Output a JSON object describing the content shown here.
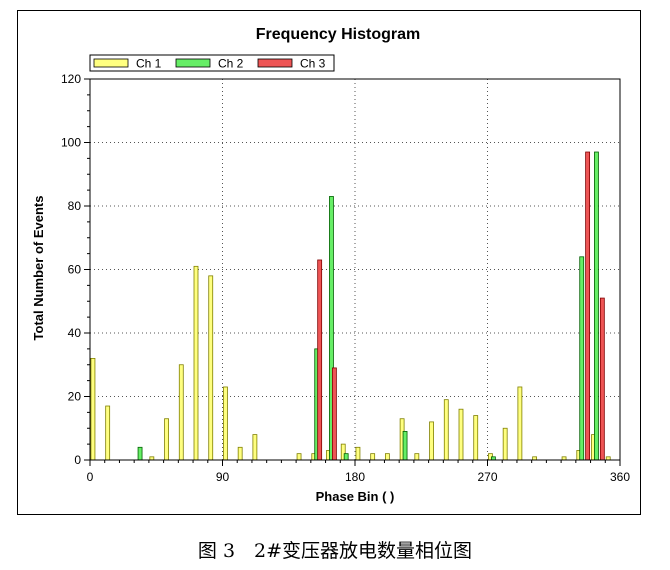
{
  "caption": "图 3　2#变压器放电数量相位图",
  "colors": {
    "ch1": "#ffff80",
    "ch2": "#66ee66",
    "ch3": "#ee5555",
    "ch1_border": "#808000",
    "ch2_border": "#006000",
    "ch3_border": "#800000"
  },
  "chart_data": {
    "type": "bar",
    "title": "Frequency Histogram",
    "xlabel": "Phase  Bin  (  )",
    "ylabel": "Total Number of Events",
    "xlim": [
      0,
      360
    ],
    "ylim": [
      0,
      120
    ],
    "xticks": [
      0,
      90,
      180,
      270,
      360
    ],
    "yticks": [
      0,
      20,
      40,
      60,
      80,
      100,
      120
    ],
    "grid": true,
    "legend_position": "top-left",
    "series": [
      {
        "name": "Ch 1",
        "points": [
          [
            2,
            32
          ],
          [
            12,
            17
          ],
          [
            42,
            1
          ],
          [
            52,
            13
          ],
          [
            62,
            30
          ],
          [
            72,
            61
          ],
          [
            82,
            58
          ],
          [
            92,
            23
          ],
          [
            102,
            4
          ],
          [
            112,
            8
          ],
          [
            142,
            2
          ],
          [
            152,
            2
          ],
          [
            162,
            3
          ],
          [
            172,
            5
          ],
          [
            182,
            4
          ],
          [
            192,
            2
          ],
          [
            202,
            2
          ],
          [
            212,
            13
          ],
          [
            222,
            2
          ],
          [
            232,
            12
          ],
          [
            242,
            19
          ],
          [
            252,
            16
          ],
          [
            262,
            14
          ],
          [
            272,
            2
          ],
          [
            282,
            10
          ],
          [
            292,
            23
          ],
          [
            302,
            1
          ],
          [
            322,
            1
          ],
          [
            332,
            3
          ],
          [
            342,
            8
          ],
          [
            352,
            1
          ]
        ]
      },
      {
        "name": "Ch 2",
        "points": [
          [
            34,
            4
          ],
          [
            154,
            35
          ],
          [
            164,
            83
          ],
          [
            174,
            2
          ],
          [
            214,
            9
          ],
          [
            274,
            1
          ],
          [
            334,
            64
          ],
          [
            344,
            97
          ]
        ]
      },
      {
        "name": "Ch 3",
        "points": [
          [
            156,
            63
          ],
          [
            166,
            29
          ],
          [
            338,
            97
          ],
          [
            348,
            51
          ]
        ]
      }
    ]
  }
}
